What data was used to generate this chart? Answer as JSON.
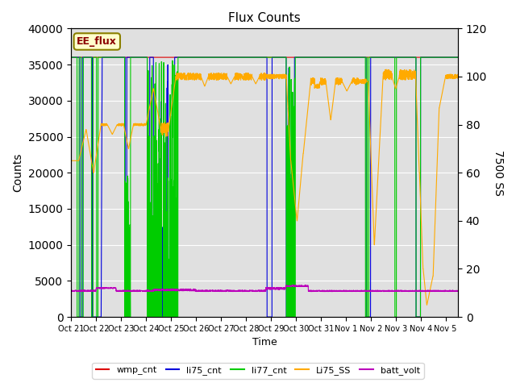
{
  "title": "Flux Counts",
  "xlabel": "Time",
  "ylabel_left": "Counts",
  "ylabel_right": "7500 SS",
  "annotation": "EE_flux",
  "ylim_left": [
    0,
    40000
  ],
  "ylim_right": [
    0,
    120
  ],
  "yticks_left": [
    0,
    5000,
    10000,
    15000,
    20000,
    25000,
    30000,
    35000,
    40000
  ],
  "yticks_right": [
    0,
    20,
    40,
    60,
    80,
    100,
    120
  ],
  "colors": {
    "wmp_cnt": "#dd0000",
    "li75_cnt": "#0000dd",
    "li77_cnt": "#00cc00",
    "Li75_SS": "#ffaa00",
    "batt_volt": "#bb00bb"
  },
  "bg_color": "#e0e0e0",
  "tick_labels": [
    "Oct 21",
    "Oct 22",
    "Oct 23",
    "Oct 24",
    "Oct 25",
    "Oct 26",
    "Oct 27",
    "Oct 28",
    "Oct 29",
    "Oct 30",
    "Oct 31",
    "Nov 1",
    "Nov 2",
    "Nov 3",
    "Nov 4",
    "Nov 5"
  ],
  "xmax": 15.5,
  "figsize": [
    6.4,
    4.8
  ],
  "dpi": 100
}
